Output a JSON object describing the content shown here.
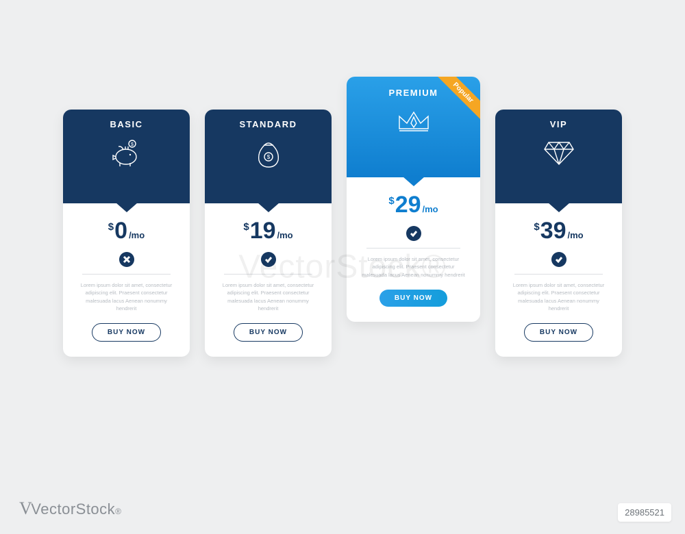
{
  "colors": {
    "page_bg": "#eeeff0",
    "dark_navy": "#163861",
    "bright_blue": "#0f7ecf",
    "bright_blue2": "#2aa0e8",
    "accent_button": "#149ddb",
    "ribbon": "#f5a623",
    "text_muted": "#b7bcc2",
    "divider": "#dcdfe3"
  },
  "description_text": "Lorem ipsum dolor sit amet, consectetur adipiscing elit. Praesent consectetur malesuada lacus Aenean nonummy hendrerit",
  "currency": "$",
  "per_label": "/mo",
  "cta_label": "BUY NOW",
  "ribbon_label": "Popular",
  "plans": [
    {
      "id": "basic",
      "title": "BASIC",
      "price": "0",
      "icon": "piggy",
      "status": "x",
      "featured": false,
      "header_bg": "#163861"
    },
    {
      "id": "standard",
      "title": "STANDARD",
      "price": "19",
      "icon": "moneybag",
      "status": "check",
      "featured": false,
      "header_bg": "#163861"
    },
    {
      "id": "premium",
      "title": "PREMIUM",
      "price": "29",
      "icon": "crown",
      "status": "check",
      "featured": true,
      "header_bg": "linear-gradient(180deg,#2aa0e8,#0f7ecf)"
    },
    {
      "id": "vip",
      "title": "VIP",
      "price": "39",
      "icon": "diamond",
      "status": "check",
      "featured": false,
      "header_bg": "#163861"
    }
  ],
  "footer": {
    "brand": "VectorStock",
    "id_label": "28985521"
  }
}
